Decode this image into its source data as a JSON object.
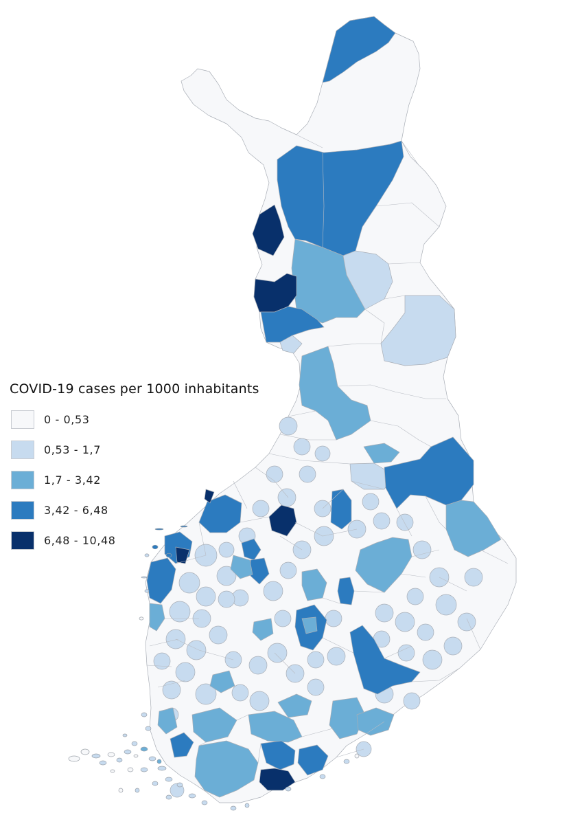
{
  "legend": {
    "title": "COVID-19 cases per 1000 inhabitants",
    "classes": [
      {
        "label": "0 - 0,53",
        "color": "#f7f8fa"
      },
      {
        "label": "0,53 - 1,7",
        "color": "#c7dbef"
      },
      {
        "label": "1,7 - 3,42",
        "color": "#6baed6"
      },
      {
        "label": "3,42 - 6,48",
        "color": "#2c7bbf"
      },
      {
        "label": "6,48 - 10,48",
        "color": "#08306b"
      }
    ]
  }
}
